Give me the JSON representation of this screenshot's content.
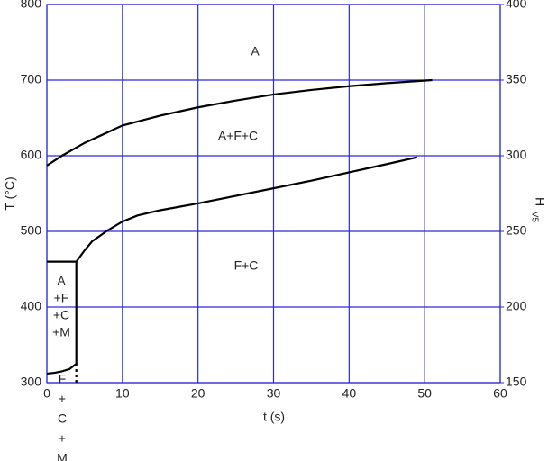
{
  "chart_data": {
    "type": "line",
    "xlabel": "t (s)",
    "ylabel": "T (°C)",
    "y2label": "H",
    "y2label_subscript": "V5",
    "xlim": [
      0,
      60
    ],
    "xticks": [
      0,
      10,
      20,
      30,
      40,
      50,
      60
    ],
    "ylim": [
      300,
      800
    ],
    "yticks": [
      300,
      400,
      500,
      600,
      700,
      800
    ],
    "y2lim": [
      150,
      400
    ],
    "y2ticks": [
      150,
      200,
      250,
      300,
      350,
      400
    ],
    "grid": true,
    "grid_color": "#2b2bd6",
    "series": [
      {
        "color": "#000000",
        "style": "solid",
        "x": [
          0,
          2,
          5,
          10,
          15,
          20,
          25,
          30,
          35,
          40,
          45,
          51
        ],
        "values": [
          587,
          600,
          617,
          640,
          653,
          664,
          673,
          681,
          687,
          692,
          696,
          700
        ]
      },
      {
        "color": "#000000",
        "style": "solid",
        "x": [
          3.9,
          5,
          6,
          8,
          10,
          12,
          15,
          20,
          25,
          30,
          35,
          40,
          45,
          49
        ],
        "values": [
          460,
          475,
          487,
          501,
          513,
          521,
          528,
          537,
          547,
          557,
          567,
          578,
          589,
          598
        ]
      },
      {
        "color": "#000000",
        "style": "solid",
        "x": [
          0,
          3.9,
          3.9
        ],
        "values": [
          460,
          460,
          325
        ]
      },
      {
        "color": "#000000",
        "style": "solid",
        "x": [
          0,
          1,
          2,
          3,
          3.9
        ],
        "values": [
          312,
          313,
          315,
          318,
          325
        ]
      },
      {
        "color": "#000000",
        "style": "dashed",
        "x": [
          3.9,
          3.9
        ],
        "values": [
          325,
          300
        ]
      }
    ],
    "region_labels": [
      [
        "A"
      ],
      [
        "A+F+C"
      ],
      [
        "F+C"
      ],
      [
        "A",
        "+F",
        "+C",
        "+M"
      ],
      [
        "F",
        "+",
        "C",
        "+",
        "M"
      ]
    ]
  }
}
